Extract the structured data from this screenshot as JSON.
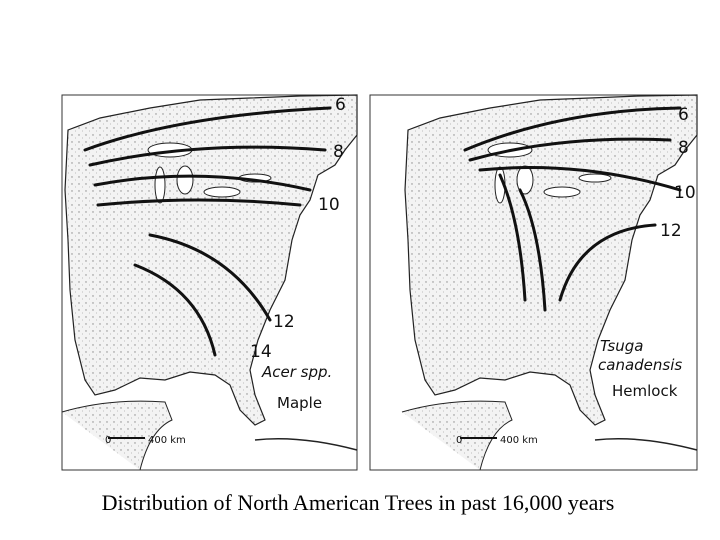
{
  "caption": "Distribution of North American Trees in past 16,000 years",
  "maps": [
    {
      "species_lines": [
        "Acer spp."
      ],
      "common_name": "Maple",
      "isochrones": [
        6,
        8,
        10,
        12,
        14
      ],
      "scale": {
        "start": "0",
        "label": "400 km"
      }
    },
    {
      "species_lines": [
        "Tsuga",
        "canadensis"
      ],
      "common_name": "Hemlock",
      "isochrones": [
        6,
        8,
        10,
        12
      ],
      "scale": {
        "start": "0",
        "label": "400 km"
      }
    }
  ]
}
